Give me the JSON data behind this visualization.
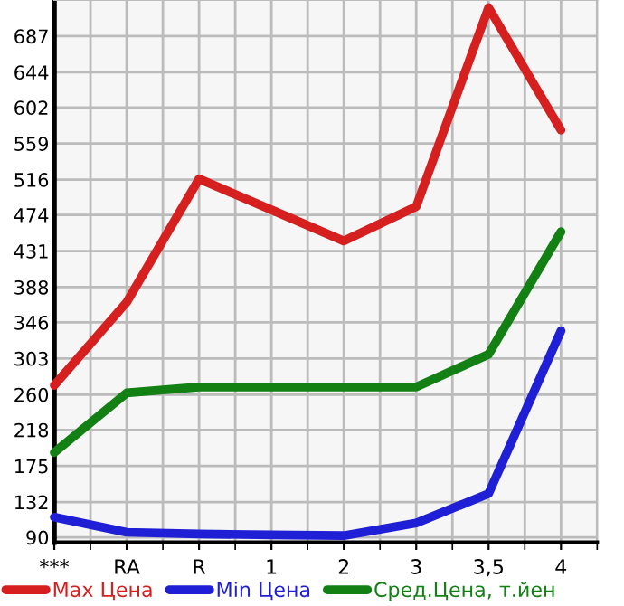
{
  "chart_data": {
    "type": "line",
    "categories": [
      "***",
      "RA",
      "R",
      "1",
      "2",
      "3",
      "3,5",
      "4"
    ],
    "series": [
      {
        "name": "Max Цена",
        "color": "#d61f1f",
        "values": [
          271,
          370,
          517,
          480,
          443,
          484,
          721,
          575
        ]
      },
      {
        "name": "Min Цена",
        "color": "#1f1fd6",
        "values": [
          114,
          96,
          94,
          93,
          92,
          107,
          142,
          336
        ]
      },
      {
        "name": "Сред.Цена, т.йен",
        "color": "#128012",
        "values": [
          191,
          262,
          269,
          269,
          269,
          269,
          308,
          454
        ]
      }
    ],
    "ylim": [
      84,
      730
    ],
    "yticks": [
      90,
      132,
      175,
      218,
      260,
      303,
      346,
      388,
      431,
      474,
      516,
      559,
      602,
      644,
      687
    ],
    "grid": true,
    "legend": "bottom",
    "marker": "none",
    "line_style": "solid"
  }
}
